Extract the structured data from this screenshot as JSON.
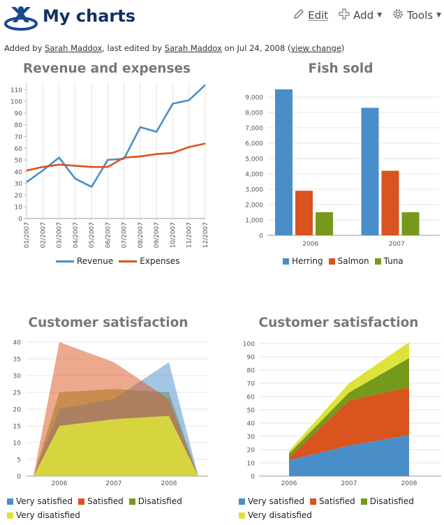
{
  "header": {
    "title": "My charts",
    "logo_icon": "confluence-x-logo",
    "edit_label": "Edit",
    "add_label": "Add",
    "tools_label": "Tools"
  },
  "meta": {
    "added_by_prefix": "Added by ",
    "added_by_user": "Sarah Maddox",
    "edited_by_prefix": ", last edited by ",
    "edited_by_user": "Sarah Maddox",
    "date_text": " on Jul 24, 2008  (",
    "view_change": "view change",
    "suffix": ")"
  },
  "colors": {
    "blue": "#4a8ec9",
    "orange": "#d9541e",
    "green": "#75991a",
    "yellow": "#dde33a",
    "title_gray": "#777777",
    "brand_navy": "#123063"
  },
  "chart_data": [
    {
      "type": "line",
      "title": "Revenue and expenses",
      "categories": [
        "01/2007",
        "02/2007",
        "03/2007",
        "04/2007",
        "05/2007",
        "06/2007",
        "07/2007",
        "08/2007",
        "09/2007",
        "10/2007",
        "11/2007",
        "12/2007"
      ],
      "series": [
        {
          "name": "Revenue",
          "color": "#4a8ec9",
          "values": [
            31,
            41,
            52,
            34,
            27,
            50,
            51,
            78,
            74,
            98,
            101,
            114
          ]
        },
        {
          "name": "Expenses",
          "color": "#d9541e",
          "values": [
            41,
            44,
            46,
            45,
            44,
            44,
            52,
            53,
            55,
            56,
            61,
            64
          ]
        }
      ],
      "ylim": [
        0,
        115
      ],
      "yticks": [
        0,
        10,
        20,
        30,
        40,
        50,
        60,
        70,
        80,
        90,
        100,
        110
      ],
      "grid": "vertical",
      "legend": "bottom"
    },
    {
      "type": "bar",
      "title": "Fish sold",
      "categories": [
        "2006",
        "2007"
      ],
      "series": [
        {
          "name": "Herring",
          "color": "#4a8ec9",
          "values": [
            9500,
            8300
          ]
        },
        {
          "name": "Salmon",
          "color": "#d9541e",
          "values": [
            2900,
            4200
          ]
        },
        {
          "name": "Tuna",
          "color": "#75991a",
          "values": [
            1500,
            1500
          ]
        }
      ],
      "ylim": [
        0,
        9500
      ],
      "yticks": [
        "0",
        "1,000",
        "2,000",
        "3,000",
        "4,000",
        "5,000",
        "6,000",
        "7,000",
        "8,000",
        "9,000"
      ],
      "grid": "horizontal",
      "legend": "bottom"
    },
    {
      "type": "area",
      "stacked": false,
      "title": "Customer satisfaction",
      "categories": [
        "2006",
        "2007",
        "2008"
      ],
      "series": [
        {
          "name": "Very satisfied",
          "color": "#4a8ec9",
          "values": [
            20,
            23,
            34
          ]
        },
        {
          "name": "Satisfied",
          "color": "#d9541e",
          "values": [
            40,
            34,
            23
          ]
        },
        {
          "name": "Disatisfied",
          "color": "#75991a",
          "values": [
            25,
            26,
            25
          ]
        },
        {
          "name": "Very disatisfied",
          "color": "#dde33a",
          "values": [
            15,
            17,
            18
          ]
        }
      ],
      "ylim": [
        0,
        40
      ],
      "yticks": [
        0,
        5,
        10,
        15,
        20,
        25,
        30,
        35,
        40
      ],
      "grid": "horizontal",
      "legend": "bottom"
    },
    {
      "type": "area",
      "stacked": true,
      "title": "Customer satisfaction",
      "categories": [
        "2006",
        "2007",
        "2008"
      ],
      "series": [
        {
          "name": "Very satisfied",
          "color": "#4a8ec9",
          "values": [
            12,
            23,
            31
          ]
        },
        {
          "name": "Satisfied",
          "color": "#d9541e",
          "values": [
            2,
            34,
            36
          ]
        },
        {
          "name": "Disatisfied",
          "color": "#75991a",
          "values": [
            3,
            6,
            22
          ]
        },
        {
          "name": "Very disatisfied",
          "color": "#dde33a",
          "values": [
            2,
            7,
            12
          ]
        }
      ],
      "ylim": [
        0,
        100
      ],
      "yticks": [
        0,
        10,
        20,
        30,
        40,
        50,
        60,
        70,
        80,
        90,
        100
      ],
      "grid": "horizontal",
      "legend": "bottom"
    }
  ]
}
